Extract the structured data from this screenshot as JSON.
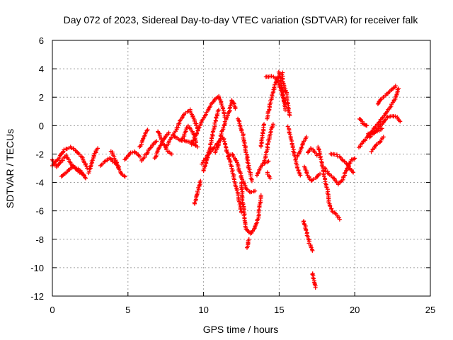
{
  "chart_data": {
    "type": "scatter",
    "title": "Day 072 of 2023, Sidereal Day-to-day VTEC variation (SDTVAR) for receiver falk",
    "xlabel": "GPS time / hours",
    "ylabel": "SDTVAR / TECUs",
    "xlim": [
      0,
      25
    ],
    "ylim": [
      -12,
      6
    ],
    "xticks": [
      0,
      5,
      10,
      15,
      20,
      25
    ],
    "yticks": [
      -12,
      -10,
      -8,
      -6,
      -4,
      -2,
      0,
      2,
      4,
      6
    ],
    "xtick_labels": [
      "0",
      "5",
      "10",
      "15",
      "20",
      "25"
    ],
    "ytick_labels": [
      "-12",
      "-10",
      "-8",
      "-6",
      "-4",
      "-2",
      "0",
      "2",
      "4",
      "6"
    ],
    "grid": true,
    "marker": "+",
    "color": "#ff0000",
    "tracks": [
      [
        [
          0.0,
          -2.4
        ],
        [
          0.3,
          -2.9
        ],
        [
          0.6,
          -2.5
        ],
        [
          0.9,
          -2.1
        ],
        [
          1.2,
          -2.6
        ],
        [
          1.5,
          -3.0
        ],
        [
          1.8,
          -3.3
        ],
        [
          2.1,
          -3.5
        ]
      ],
      [
        [
          0.0,
          -2.8
        ],
        [
          0.4,
          -2.3
        ],
        [
          0.8,
          -1.7
        ],
        [
          1.2,
          -1.5
        ],
        [
          1.6,
          -1.8
        ],
        [
          2.0,
          -2.3
        ],
        [
          2.3,
          -3.0
        ]
      ],
      [
        [
          0.6,
          -3.6
        ],
        [
          1.0,
          -3.2
        ],
        [
          1.4,
          -2.9
        ],
        [
          1.8,
          -3.1
        ],
        [
          2.2,
          -3.7
        ]
      ],
      [
        [
          2.4,
          -3.3
        ],
        [
          2.6,
          -2.6
        ],
        [
          2.8,
          -2.0
        ],
        [
          3.0,
          -1.6
        ]
      ],
      [
        [
          3.2,
          -2.8
        ],
        [
          3.5,
          -2.5
        ],
        [
          3.8,
          -2.3
        ],
        [
          4.1,
          -2.6
        ],
        [
          4.4,
          -2.9
        ]
      ],
      [
        [
          3.9,
          -1.8
        ],
        [
          4.2,
          -2.5
        ],
        [
          4.5,
          -3.3
        ],
        [
          4.8,
          -3.6
        ]
      ],
      [
        [
          4.8,
          -2.4
        ],
        [
          5.1,
          -2.0
        ],
        [
          5.4,
          -1.8
        ],
        [
          5.8,
          -2.2
        ]
      ],
      [
        [
          5.8,
          -1.5
        ],
        [
          6.1,
          -0.7
        ],
        [
          6.3,
          -0.3
        ]
      ],
      [
        [
          5.9,
          -2.5
        ],
        [
          6.2,
          -2.0
        ],
        [
          6.6,
          -1.4
        ],
        [
          6.9,
          -1.1
        ]
      ],
      [
        [
          6.8,
          -2.3
        ],
        [
          7.1,
          -1.5
        ],
        [
          7.4,
          -0.9
        ],
        [
          7.7,
          -0.5
        ]
      ],
      [
        [
          7.0,
          -0.4
        ],
        [
          7.3,
          -1.2
        ],
        [
          7.6,
          -1.8
        ],
        [
          7.9,
          -2.0
        ]
      ],
      [
        [
          7.6,
          -1.4
        ],
        [
          7.9,
          -0.8
        ],
        [
          8.2,
          -0.3
        ],
        [
          8.5,
          0.4
        ],
        [
          8.8,
          0.9
        ],
        [
          9.1,
          1.1
        ],
        [
          9.3,
          0.6
        ],
        [
          9.6,
          -0.2
        ]
      ],
      [
        [
          8.0,
          -0.7
        ],
        [
          8.4,
          -1.0
        ],
        [
          8.8,
          -1.1
        ],
        [
          9.2,
          -1.2
        ],
        [
          9.6,
          -1.5
        ]
      ],
      [
        [
          8.6,
          -1.0
        ],
        [
          8.8,
          -0.4
        ],
        [
          9.0,
          0.0
        ],
        [
          9.3,
          -0.5
        ],
        [
          9.5,
          -1.2
        ]
      ],
      [
        [
          9.2,
          -1.3
        ],
        [
          9.5,
          -0.7
        ],
        [
          9.8,
          0.1
        ],
        [
          10.1,
          0.7
        ],
        [
          10.4,
          1.3
        ],
        [
          10.7,
          1.8
        ],
        [
          11.0,
          2.1
        ],
        [
          11.2,
          1.5
        ],
        [
          11.4,
          0.6
        ]
      ],
      [
        [
          9.4,
          -5.5
        ],
        [
          9.6,
          -4.7
        ],
        [
          9.8,
          -3.9
        ]
      ],
      [
        [
          9.9,
          -2.7
        ],
        [
          10.2,
          -2.2
        ],
        [
          10.5,
          -1.8
        ],
        [
          10.8,
          -1.4
        ],
        [
          11.1,
          -1.0
        ]
      ],
      [
        [
          10.0,
          -3.2
        ],
        [
          10.2,
          -2.5
        ],
        [
          10.4,
          -1.7
        ],
        [
          10.6,
          -0.6
        ],
        [
          10.8,
          0.4
        ],
        [
          11.0,
          1.1
        ]
      ],
      [
        [
          10.8,
          -1.9
        ],
        [
          11.1,
          -0.9
        ],
        [
          11.4,
          0.2
        ],
        [
          11.7,
          1.0
        ],
        [
          11.9,
          1.8
        ],
        [
          12.1,
          1.2
        ]
      ],
      [
        [
          11.3,
          -0.8
        ],
        [
          11.5,
          -1.7
        ],
        [
          11.8,
          -2.7
        ],
        [
          12.0,
          -3.6
        ],
        [
          12.2,
          -4.6
        ],
        [
          12.4,
          -5.5
        ],
        [
          12.5,
          -6.1
        ]
      ],
      [
        [
          11.6,
          -2.2
        ],
        [
          11.9,
          -2.0
        ],
        [
          12.2,
          -2.6
        ],
        [
          12.5,
          -3.6
        ],
        [
          12.8,
          -4.4
        ],
        [
          13.1,
          -4.7
        ],
        [
          13.4,
          -4.6
        ]
      ],
      [
        [
          12.3,
          0.5
        ],
        [
          12.6,
          -0.6
        ],
        [
          12.8,
          -1.8
        ],
        [
          13.0,
          -3.0
        ],
        [
          13.2,
          -3.9
        ]
      ],
      [
        [
          12.5,
          -4.0
        ],
        [
          12.6,
          -5.5
        ],
        [
          12.8,
          -7.2
        ]
      ],
      [
        [
          12.8,
          -7.3
        ],
        [
          13.1,
          -7.6
        ],
        [
          13.4,
          -7.2
        ],
        [
          13.6,
          -6.6
        ],
        [
          13.7,
          -5.7
        ],
        [
          13.8,
          -4.9
        ]
      ],
      [
        [
          12.9,
          -8.6
        ],
        [
          13.0,
          -8.0
        ]
      ],
      [
        [
          13.5,
          -3.5
        ],
        [
          13.8,
          -2.9
        ],
        [
          14.0,
          -2.6
        ],
        [
          14.3,
          -2.5
        ]
      ],
      [
        [
          13.8,
          -1.5
        ],
        [
          13.9,
          -0.7
        ],
        [
          14.0,
          0.1
        ]
      ],
      [
        [
          14.0,
          -2.7
        ],
        [
          14.2,
          -1.7
        ],
        [
          14.4,
          -0.5
        ],
        [
          14.6,
          0.1
        ]
      ],
      [
        [
          14.2,
          -3.3
        ],
        [
          14.4,
          -3.7
        ]
      ],
      [
        [
          14.2,
          0.5
        ],
        [
          14.4,
          1.5
        ],
        [
          14.6,
          2.4
        ],
        [
          14.8,
          3.1
        ],
        [
          15.0,
          3.5
        ]
      ],
      [
        [
          14.1,
          3.4
        ],
        [
          14.5,
          3.5
        ],
        [
          14.8,
          3.3
        ],
        [
          15.0,
          2.9
        ],
        [
          15.2,
          2.2
        ],
        [
          15.4,
          1.5
        ]
      ],
      [
        [
          15.0,
          3.8
        ],
        [
          15.1,
          3.3
        ],
        [
          15.2,
          2.6
        ],
        [
          15.3,
          1.9
        ],
        [
          15.4,
          1.1
        ]
      ],
      [
        [
          15.2,
          3.7
        ],
        [
          15.3,
          2.9
        ],
        [
          15.5,
          2.2
        ],
        [
          15.6,
          1.2
        ],
        [
          15.7,
          0.7
        ]
      ],
      [
        [
          15.6,
          -0.1
        ],
        [
          15.8,
          -1.0
        ],
        [
          16.0,
          -2.0
        ],
        [
          16.2,
          -2.9
        ],
        [
          16.4,
          -3.5
        ]
      ],
      [
        [
          16.2,
          -2.2
        ],
        [
          16.4,
          -1.7
        ],
        [
          16.6,
          -1.2
        ],
        [
          16.8,
          -0.8
        ]
      ],
      [
        [
          16.7,
          -2.9
        ],
        [
          16.9,
          -3.5
        ],
        [
          17.1,
          -3.9
        ],
        [
          17.4,
          -3.7
        ],
        [
          17.7,
          -3.4
        ]
      ],
      [
        [
          16.9,
          -1.9
        ],
        [
          17.1,
          -1.6
        ],
        [
          17.3,
          -1.8
        ],
        [
          17.5,
          -2.1
        ]
      ],
      [
        [
          16.6,
          -6.7
        ],
        [
          16.8,
          -7.4
        ],
        [
          17.0,
          -8.3
        ],
        [
          17.2,
          -8.8
        ]
      ],
      [
        [
          17.2,
          -10.4
        ],
        [
          17.3,
          -10.9
        ],
        [
          17.4,
          -11.4
        ]
      ],
      [
        [
          17.6,
          -1.5
        ],
        [
          17.8,
          -2.6
        ],
        [
          18.0,
          -3.7
        ],
        [
          18.2,
          -4.6
        ],
        [
          18.3,
          -5.4
        ],
        [
          18.5,
          -6.0
        ],
        [
          18.8,
          -6.3
        ],
        [
          19.0,
          -6.6
        ]
      ],
      [
        [
          18.0,
          -3.0
        ],
        [
          18.3,
          -3.4
        ],
        [
          18.6,
          -3.7
        ],
        [
          18.9,
          -4.1
        ],
        [
          19.2,
          -3.8
        ],
        [
          19.5,
          -3.0
        ],
        [
          19.8,
          -2.4
        ],
        [
          20.0,
          -2.3
        ]
      ],
      [
        [
          18.4,
          -2.0
        ],
        [
          18.7,
          -2.0
        ],
        [
          19.0,
          -2.2
        ],
        [
          19.3,
          -2.5
        ],
        [
          19.6,
          -2.9
        ],
        [
          19.9,
          -3.3
        ]
      ],
      [
        [
          20.3,
          -1.5
        ],
        [
          20.6,
          -1.1
        ],
        [
          20.9,
          -0.7
        ],
        [
          21.2,
          -0.3
        ],
        [
          21.5,
          0.1
        ],
        [
          21.8,
          0.5
        ],
        [
          22.1,
          0.9
        ],
        [
          22.4,
          1.4
        ],
        [
          22.7,
          2.0
        ],
        [
          22.9,
          2.6
        ]
      ],
      [
        [
          20.3,
          0.5
        ],
        [
          20.6,
          0.1
        ],
        [
          20.8,
          0.0
        ]
      ],
      [
        [
          20.9,
          -0.6
        ],
        [
          21.2,
          -0.5
        ],
        [
          21.5,
          -0.4
        ],
        [
          21.8,
          -0.2
        ]
      ],
      [
        [
          21.1,
          -1.8
        ],
        [
          21.4,
          -1.4
        ],
        [
          21.7,
          -1.1
        ],
        [
          21.9,
          -0.8
        ]
      ],
      [
        [
          21.9,
          0.3
        ],
        [
          22.2,
          0.6
        ],
        [
          22.5,
          0.7
        ],
        [
          22.8,
          0.6
        ],
        [
          23.0,
          0.3
        ]
      ],
      [
        [
          21.5,
          1.5
        ],
        [
          21.8,
          1.9
        ],
        [
          22.1,
          2.2
        ],
        [
          22.4,
          2.5
        ],
        [
          22.7,
          2.8
        ]
      ],
      [
        [
          21.0,
          -0.8
        ],
        [
          21.3,
          -0.5
        ],
        [
          21.6,
          -0.1
        ],
        [
          21.9,
          0.2
        ]
      ]
    ]
  }
}
